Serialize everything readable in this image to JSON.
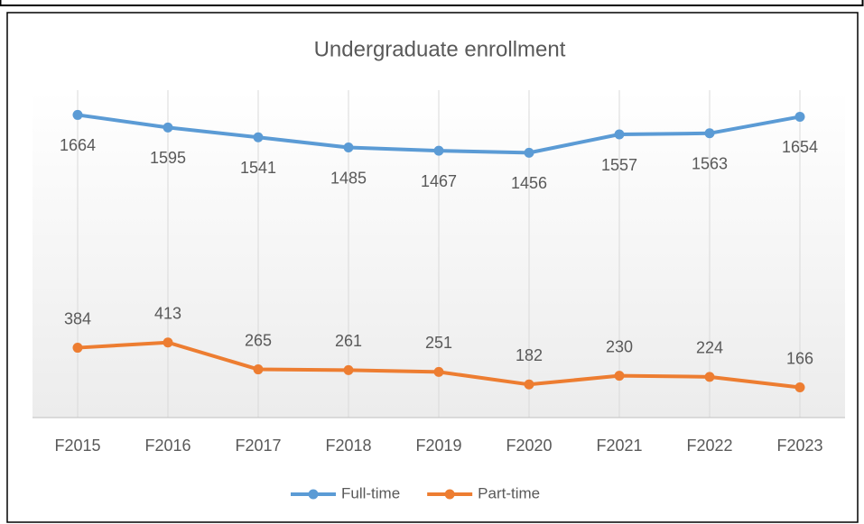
{
  "chart_data": {
    "type": "line",
    "title": "Undergraduate enrollment",
    "categories": [
      "F2015",
      "F2016",
      "F2017",
      "F2018",
      "F2019",
      "F2020",
      "F2021",
      "F2022",
      "F2023"
    ],
    "series": [
      {
        "name": "Full-time",
        "color": "#5b9bd5",
        "values": [
          1664,
          1595,
          1541,
          1485,
          1467,
          1456,
          1557,
          1563,
          1654
        ]
      },
      {
        "name": "Part-time",
        "color": "#ed7d31",
        "values": [
          384,
          413,
          265,
          261,
          251,
          182,
          230,
          224,
          166
        ]
      }
    ],
    "ylim": [
      0,
      1800
    ],
    "legend": "bottom",
    "grid": true
  }
}
